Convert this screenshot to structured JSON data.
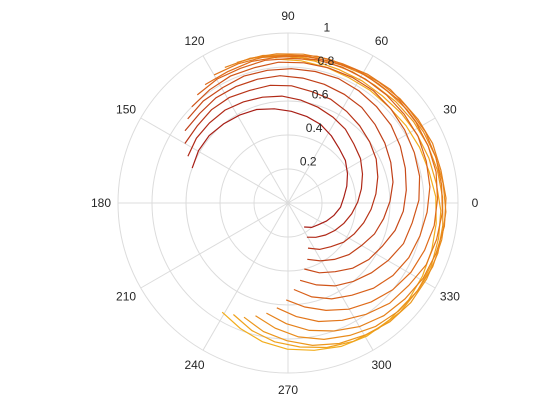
{
  "chart_data": {
    "type": "polar-line",
    "title": "",
    "theta_unit": "degrees",
    "angle_ticks": [
      0,
      30,
      60,
      90,
      120,
      150,
      180,
      210,
      240,
      270,
      300,
      330
    ],
    "angle_tick_labels": [
      "0",
      "30",
      "60",
      "90",
      "120",
      "150",
      "180",
      "210",
      "240",
      "270",
      "300",
      "330"
    ],
    "radius_range": [
      0,
      1
    ],
    "radius_ticks": [
      0.2,
      0.4,
      0.6,
      0.8,
      1.0
    ],
    "radius_tick_labels": [
      "0.2",
      "0.4",
      "0.6",
      "0.8",
      "1"
    ],
    "radius_label_angle_deg": 80,
    "grid": true,
    "series_count": 14,
    "theta_start_deg": [
      95,
      100,
      105,
      110,
      115,
      120,
      125,
      130,
      135,
      140,
      145,
      150,
      155,
      160
    ],
    "theta_step_deg": -10.29,
    "theta_points": 22,
    "r_values": [
      [
        0.85,
        0.84,
        0.83,
        0.82,
        0.82,
        0.82,
        0.83,
        0.84,
        0.85,
        0.87,
        0.88,
        0.89,
        0.9,
        0.91,
        0.91,
        0.91,
        0.9,
        0.88,
        0.86,
        0.83,
        0.79,
        0.75
      ],
      [
        0.87,
        0.86,
        0.85,
        0.84,
        0.84,
        0.84,
        0.85,
        0.86,
        0.87,
        0.88,
        0.9,
        0.91,
        0.92,
        0.92,
        0.92,
        0.91,
        0.9,
        0.88,
        0.85,
        0.82,
        0.78,
        0.73
      ],
      [
        0.88,
        0.87,
        0.86,
        0.86,
        0.86,
        0.86,
        0.87,
        0.88,
        0.89,
        0.9,
        0.91,
        0.92,
        0.93,
        0.93,
        0.93,
        0.92,
        0.9,
        0.88,
        0.85,
        0.81,
        0.77,
        0.72
      ],
      [
        0.88,
        0.88,
        0.87,
        0.87,
        0.87,
        0.88,
        0.88,
        0.89,
        0.9,
        0.91,
        0.92,
        0.93,
        0.93,
        0.93,
        0.92,
        0.91,
        0.89,
        0.86,
        0.83,
        0.79,
        0.74,
        0.69
      ],
      [
        0.88,
        0.88,
        0.88,
        0.88,
        0.88,
        0.88,
        0.89,
        0.9,
        0.91,
        0.92,
        0.92,
        0.93,
        0.93,
        0.92,
        0.91,
        0.89,
        0.87,
        0.84,
        0.8,
        0.76,
        0.71,
        0.66
      ],
      [
        0.87,
        0.87,
        0.87,
        0.87,
        0.88,
        0.88,
        0.89,
        0.9,
        0.9,
        0.91,
        0.91,
        0.91,
        0.91,
        0.9,
        0.89,
        0.86,
        0.84,
        0.8,
        0.76,
        0.72,
        0.67,
        0.62
      ],
      [
        0.85,
        0.85,
        0.86,
        0.86,
        0.87,
        0.87,
        0.88,
        0.88,
        0.89,
        0.89,
        0.89,
        0.89,
        0.88,
        0.87,
        0.85,
        0.83,
        0.8,
        0.76,
        0.72,
        0.67,
        0.62,
        0.57
      ],
      [
        0.83,
        0.84,
        0.84,
        0.85,
        0.85,
        0.86,
        0.86,
        0.86,
        0.86,
        0.86,
        0.86,
        0.85,
        0.84,
        0.82,
        0.8,
        0.78,
        0.75,
        0.71,
        0.66,
        0.62,
        0.57,
        0.51
      ],
      [
        0.8,
        0.81,
        0.82,
        0.82,
        0.83,
        0.83,
        0.83,
        0.83,
        0.83,
        0.82,
        0.81,
        0.8,
        0.79,
        0.77,
        0.74,
        0.72,
        0.68,
        0.64,
        0.6,
        0.56,
        0.51,
        0.46
      ],
      [
        0.77,
        0.78,
        0.78,
        0.79,
        0.79,
        0.79,
        0.79,
        0.79,
        0.78,
        0.77,
        0.76,
        0.74,
        0.72,
        0.7,
        0.68,
        0.65,
        0.61,
        0.58,
        0.54,
        0.49,
        0.45,
        0.4
      ],
      [
        0.74,
        0.74,
        0.75,
        0.75,
        0.75,
        0.75,
        0.74,
        0.73,
        0.72,
        0.71,
        0.69,
        0.67,
        0.65,
        0.63,
        0.6,
        0.57,
        0.54,
        0.5,
        0.47,
        0.43,
        0.39,
        0.35
      ],
      [
        0.7,
        0.7,
        0.71,
        0.71,
        0.7,
        0.7,
        0.69,
        0.67,
        0.66,
        0.64,
        0.62,
        0.6,
        0.58,
        0.55,
        0.52,
        0.49,
        0.46,
        0.43,
        0.4,
        0.36,
        0.33,
        0.29
      ],
      [
        0.65,
        0.66,
        0.66,
        0.66,
        0.65,
        0.64,
        0.63,
        0.61,
        0.59,
        0.57,
        0.55,
        0.52,
        0.5,
        0.47,
        0.44,
        0.41,
        0.38,
        0.35,
        0.32,
        0.29,
        0.26,
        0.23
      ],
      [
        0.6,
        0.61,
        0.61,
        0.6,
        0.59,
        0.58,
        0.56,
        0.54,
        0.52,
        0.5,
        0.47,
        0.44,
        0.42,
        0.39,
        0.36,
        0.33,
        0.31,
        0.28,
        0.25,
        0.22,
        0.2,
        0.17
      ]
    ],
    "colors": [
      "#f2ad1d",
      "#efa21d",
      "#ec971c",
      "#e98c1c",
      "#e5811b",
      "#e2761b",
      "#df6b1a",
      "#d8601a",
      "#d05519",
      "#c84a19",
      "#c03f18",
      "#b83418",
      "#b02917",
      "#a81e16"
    ]
  }
}
